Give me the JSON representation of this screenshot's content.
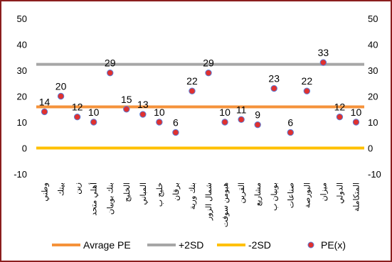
{
  "chart_data": {
    "type": "scatter",
    "categories": [
      "وطني",
      "بيتك",
      "زين",
      "أهلي متحد",
      "بنك بوبيان",
      "الخليج",
      "المباني",
      "خليج ب",
      "برقان",
      "بنك ورية",
      "شمال الزور",
      "هيومن سوفت",
      "القرين",
      "مشاريع",
      "بوبيان ب",
      "صناعات",
      "البورصة",
      "ميزان",
      "الدولي",
      "المتكاملة"
    ],
    "series": [
      {
        "name": "PE(x)",
        "values": [
          14,
          20,
          12,
          10,
          29,
          15,
          13,
          10,
          6,
          22,
          29,
          10,
          11,
          9,
          23,
          6,
          22,
          33,
          12,
          10
        ],
        "color": "#E0312F"
      }
    ],
    "reference_lines": [
      {
        "name": "Avrage PE",
        "value": 15.9,
        "color": "#F5923A"
      },
      {
        "name": "+2SD",
        "value": 32.3,
        "color": "#A6A6A6"
      },
      {
        "name": "-2SD",
        "value": 0,
        "color": "#FFC000"
      }
    ],
    "data_labels": [
      "14",
      "20",
      "12",
      "10",
      "29",
      "15",
      "13",
      "10",
      "6",
      "22",
      "29",
      "10",
      "11",
      "9",
      "23",
      "6",
      "22",
      "33",
      "12",
      "10"
    ],
    "ylim": [
      -10,
      50
    ],
    "yticks": [
      "50",
      "40",
      "30",
      "20",
      "10",
      "0",
      "-10"
    ],
    "ytick_values": [
      50,
      40,
      30,
      20,
      10,
      0,
      -10
    ],
    "secondary_y_axis": true,
    "legend_position": "bottom",
    "grid": false,
    "title": "",
    "xlabel": "",
    "ylabel": ""
  },
  "legend": {
    "items": [
      {
        "label": "Avrage PE",
        "color": "#F5923A",
        "kind": "line"
      },
      {
        "label": "+2SD",
        "color": "#A6A6A6",
        "kind": "line"
      },
      {
        "label": "-2SD",
        "color": "#FFC000",
        "kind": "line"
      },
      {
        "label": "PE(x)",
        "color": "#E0312F",
        "kind": "marker"
      }
    ]
  },
  "frame": {
    "border_color": "#8B1E1E"
  }
}
